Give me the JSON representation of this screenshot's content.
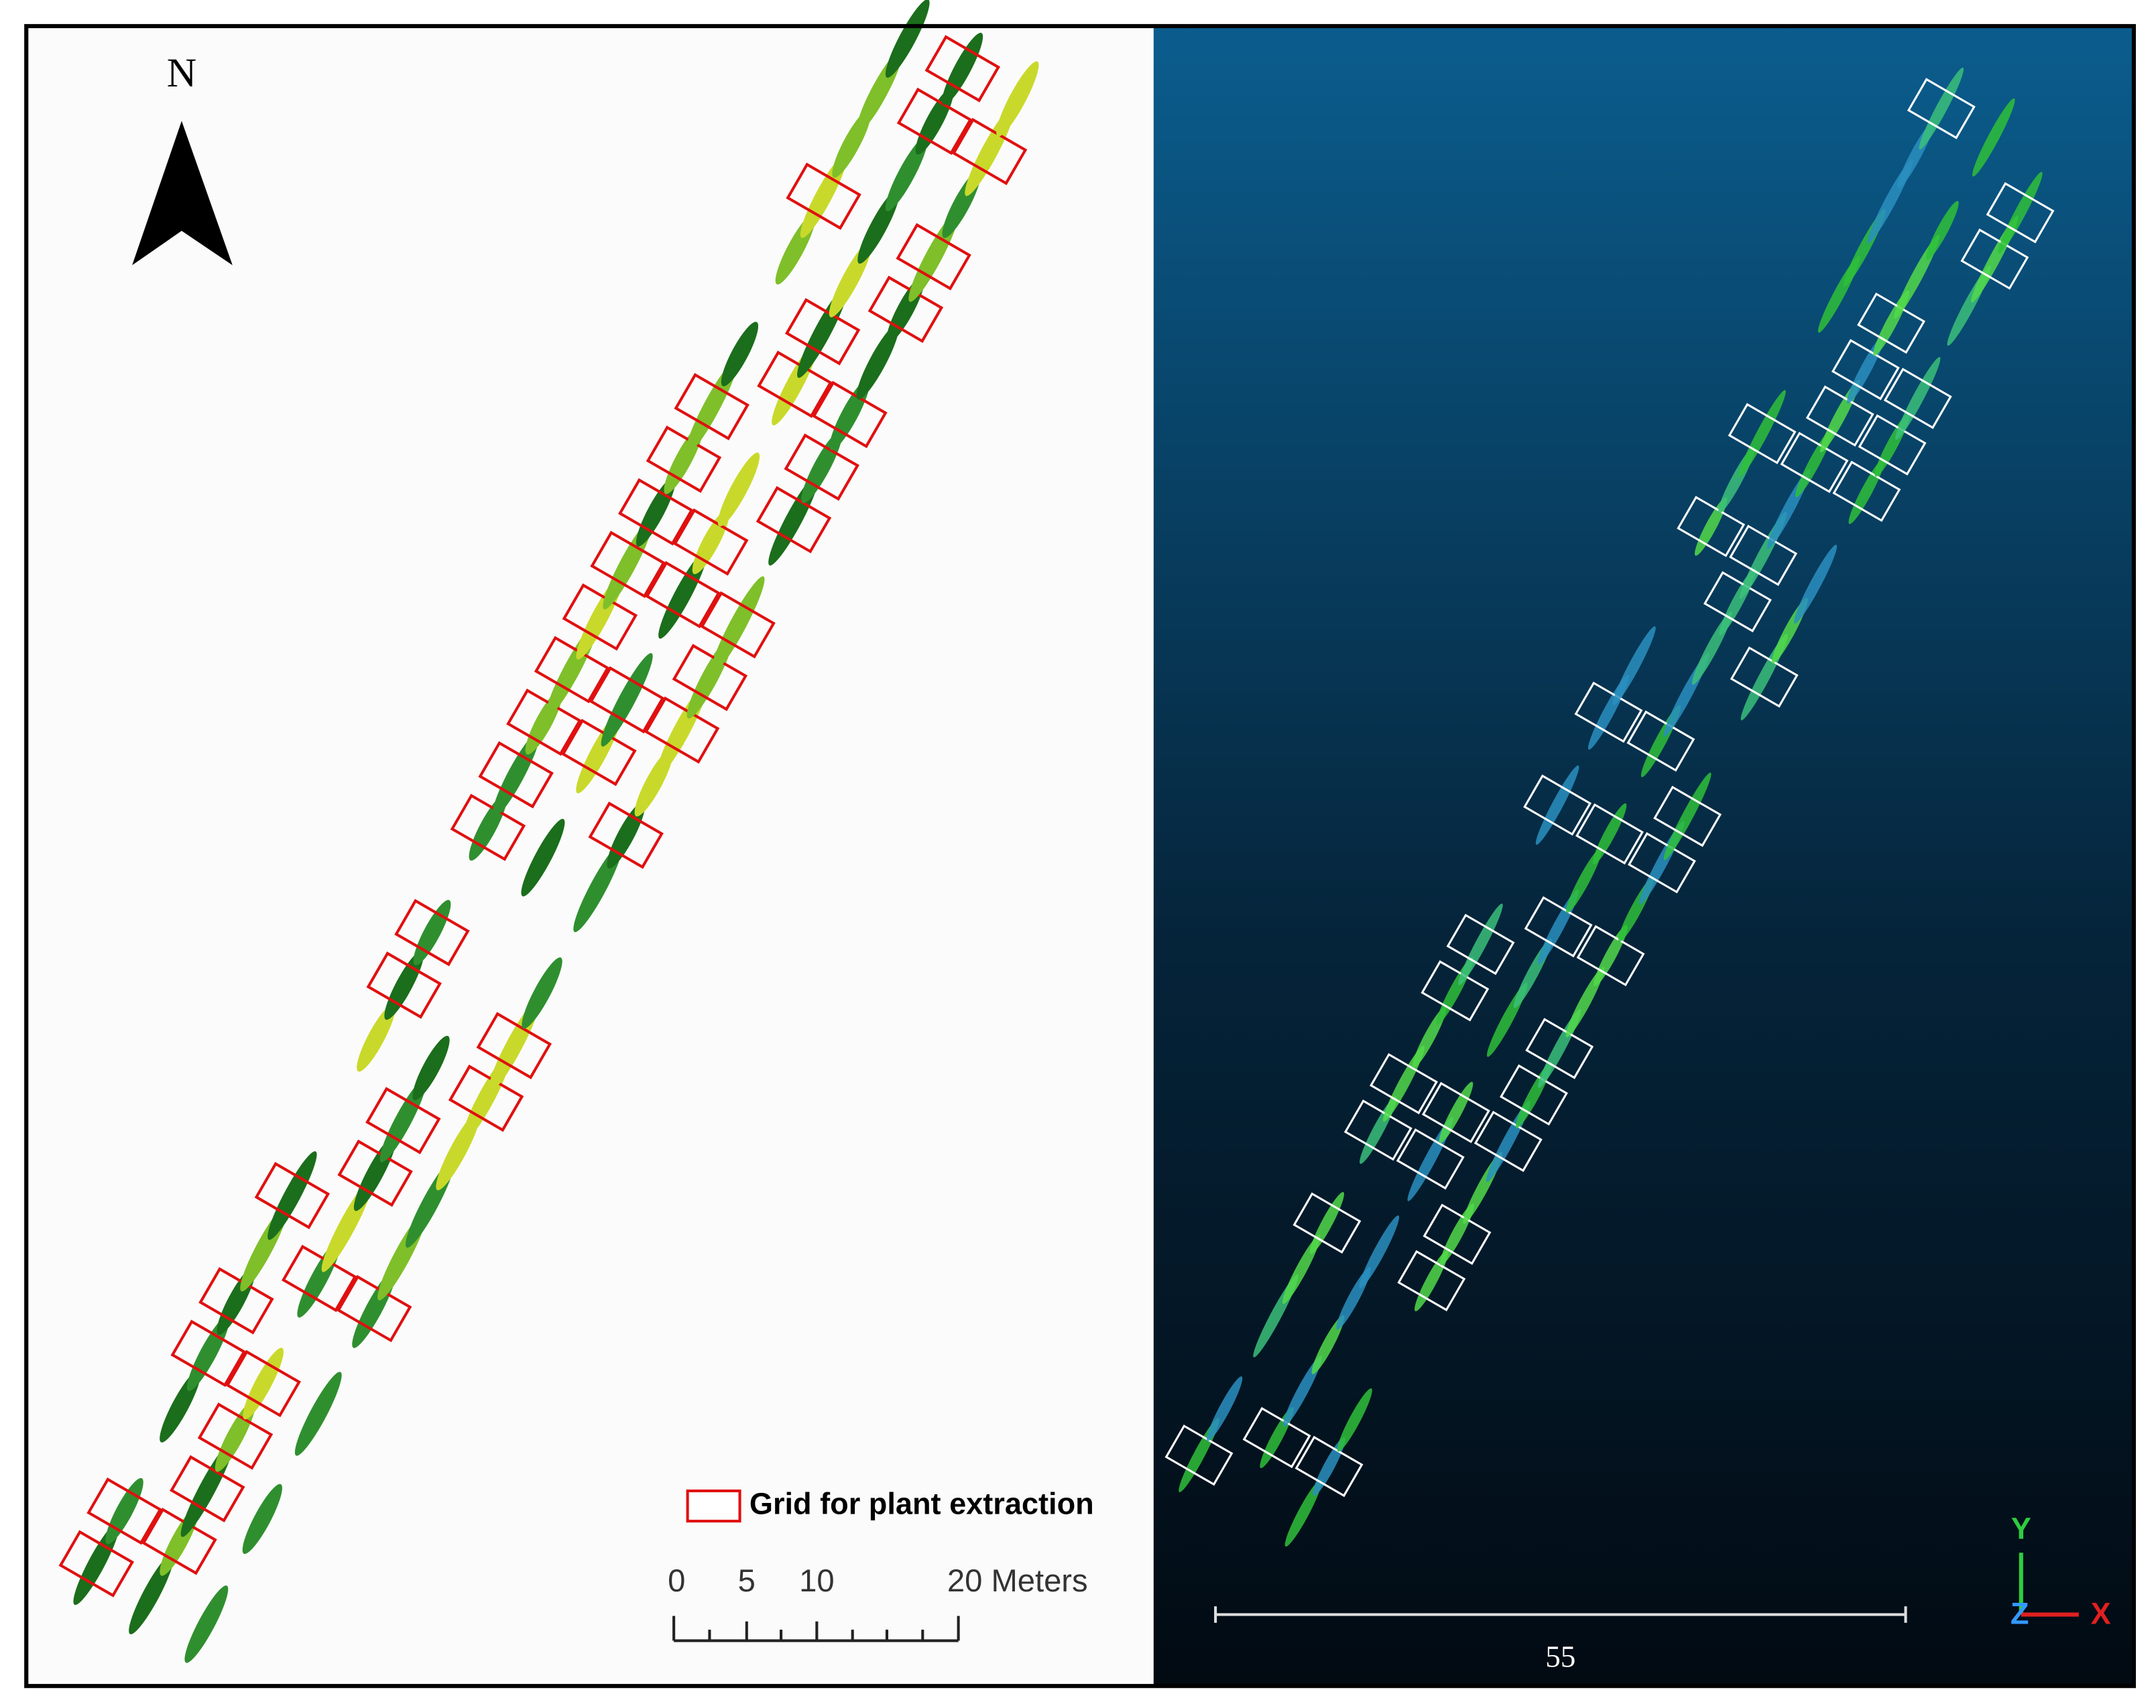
{
  "north_arrow": {
    "label": "N"
  },
  "legend": {
    "label": "Grid for plant extraction"
  },
  "scale_bar": {
    "labels": [
      "0",
      "5",
      "10",
      "20 Meters"
    ]
  },
  "point_cloud": {
    "scale_label": "55",
    "axes": [
      "Y",
      "Z",
      "X"
    ]
  }
}
